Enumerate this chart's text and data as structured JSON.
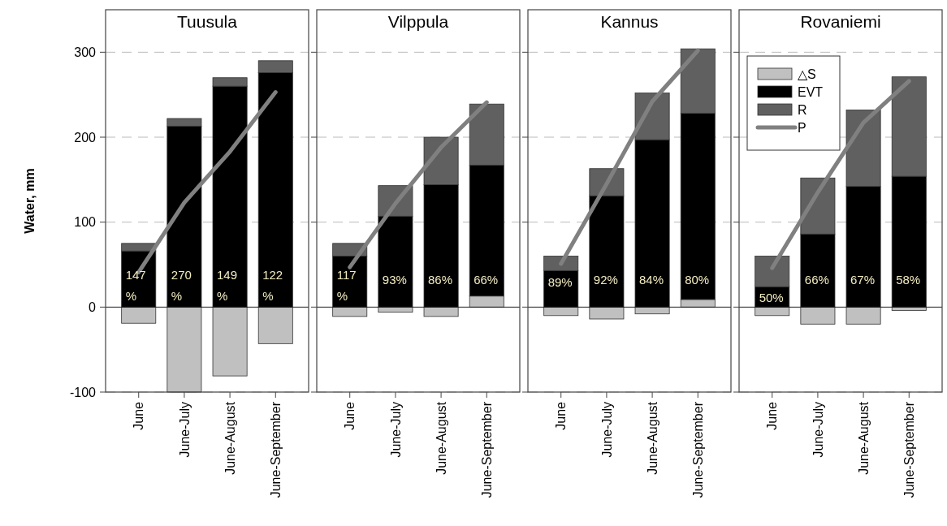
{
  "chart_data": [
    {
      "type": "bar",
      "stacked": true,
      "title": "Tuusula",
      "annotations": [
        "147 %",
        "270 %",
        "149 %",
        "122 %"
      ],
      "ylabel": "Water, mm",
      "categories": [
        "June",
        "June-July",
        "June-August",
        "June-September"
      ],
      "ylim": [
        -100,
        350
      ],
      "yticks": [
        -100,
        0,
        100,
        200,
        300
      ],
      "grid": "y",
      "series": [
        {
          "color": "#c0c0c0",
          "values": [
            -19,
            -100,
            -81,
            -43
          ]
        },
        {
          "color": "#000000",
          "values": [
            66,
            213,
            260,
            276
          ]
        },
        {
          "color": "#606060",
          "values": [
            9,
            9,
            10,
            14
          ]
        },
        {
          "type": "line",
          "color": "#808080",
          "values": [
            41,
            123,
            183,
            253
          ]
        }
      ]
    },
    {
      "type": "bar",
      "stacked": true,
      "title": "Vilppula",
      "annotations": [
        "117 %",
        "93%",
        "86%",
        "66%"
      ],
      "categories": [
        "June",
        "June-July",
        "June-August",
        "June-September"
      ],
      "ylim": [
        -100,
        350
      ],
      "yticks": [
        -100,
        0,
        100,
        200,
        300
      ],
      "grid": "y",
      "tick_labels": "x",
      "series": [
        {
          "color": "#c0c0c0",
          "values": [
            -11,
            -6,
            -11,
            13
          ]
        },
        {
          "color": "#000000",
          "values": [
            60,
            107,
            144,
            154
          ]
        },
        {
          "color": "#606060",
          "values": [
            15,
            36,
            56,
            72
          ]
        },
        {
          "type": "line",
          "color": "#808080",
          "values": [
            47,
            122,
            188,
            241
          ]
        }
      ]
    },
    {
      "type": "bar",
      "stacked": true,
      "title": "Kannus",
      "annotations": [
        "89%",
        "92%",
        "84%",
        "80%"
      ],
      "categories": [
        "June",
        "June-July",
        "June-August",
        "June-September"
      ],
      "ylim": [
        -100,
        350
      ],
      "yticks": [
        -100,
        0,
        100,
        200,
        300
      ],
      "grid": "y",
      "tick_labels": "x",
      "series": [
        {
          "color": "#c0c0c0",
          "values": [
            -10,
            -14,
            -8,
            9
          ]
        },
        {
          "color": "#000000",
          "values": [
            43,
            131,
            197,
            219
          ]
        },
        {
          "color": "#606060",
          "values": [
            17,
            32,
            55,
            76
          ]
        },
        {
          "type": "line",
          "color": "#808080",
          "values": [
            51,
            145,
            242,
            302
          ]
        }
      ]
    },
    {
      "type": "bar",
      "stacked": true,
      "title": "Rovaniemi",
      "annotations": [
        "50%",
        "66%",
        "67%",
        "58%"
      ],
      "categories": [
        "June",
        "June-July",
        "June-August",
        "June-September"
      ],
      "ylim": [
        -100,
        350
      ],
      "yticks": [
        -100,
        0,
        100,
        200,
        300
      ],
      "grid": "y",
      "tick_labels": "x",
      "legend": "top left",
      "series": [
        {
          "name": "△S",
          "color": "#c0c0c0",
          "values": [
            -10,
            -20,
            -20,
            -4
          ]
        },
        {
          "name": "EVT",
          "color": "#000000",
          "values": [
            24,
            86,
            142,
            154
          ]
        },
        {
          "name": "R",
          "color": "#606060",
          "values": [
            36,
            66,
            90,
            117
          ]
        },
        {
          "name": "P",
          "type": "line",
          "color": "#808080",
          "values": [
            46,
            135,
            217,
            266
          ]
        }
      ]
    }
  ]
}
